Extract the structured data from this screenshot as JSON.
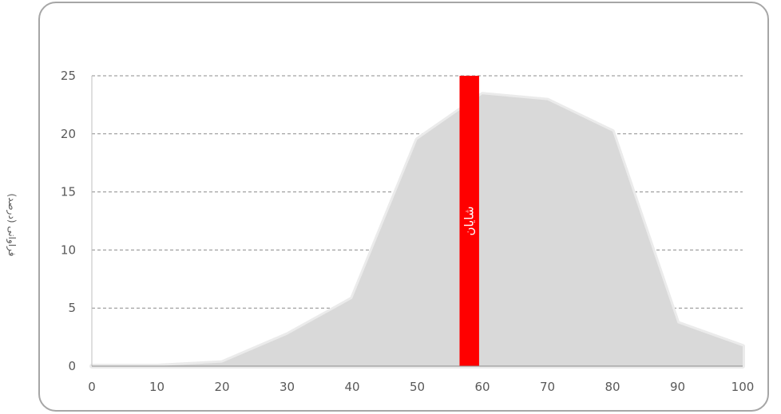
{
  "chart_data": {
    "type": "area",
    "ylabel": "فراوانی (درصد)",
    "x": [
      0,
      10,
      20,
      30,
      40,
      50,
      60,
      70,
      80,
      90,
      100
    ],
    "values": [
      0,
      0,
      0.3,
      2.7,
      5.8,
      19.5,
      23.4,
      22.9,
      20.2,
      3.7,
      1.7
    ],
    "xlim": [
      0,
      100
    ],
    "ylim": [
      0,
      25
    ],
    "x_ticks": [
      "0",
      "10",
      "20",
      "30",
      "40",
      "50",
      "60",
      "70",
      "80",
      "90",
      "100"
    ],
    "y_ticks": [
      "0",
      "5",
      "10",
      "15",
      "20",
      "25"
    ],
    "grid": true,
    "area_color": "#d9d9d9",
    "marker": {
      "label": "شایان",
      "x_start": 56.5,
      "x_end": 59.5,
      "color": "#ff0000"
    }
  }
}
